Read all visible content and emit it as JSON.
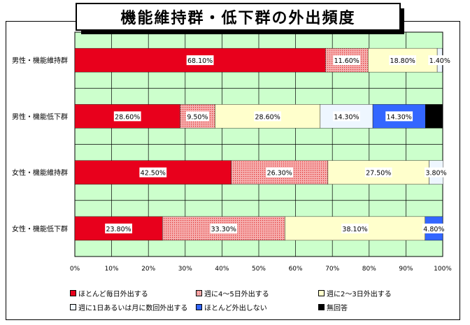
{
  "chart_data": {
    "type": "bar",
    "orientation": "horizontal",
    "stacked": true,
    "title": "機能維持群・低下群の外出頻度",
    "categories": [
      "男性・機能維持群",
      "男性・機能低下群",
      "女性・機能維持群",
      "女性・機能低下群"
    ],
    "x_ticks": [
      "0%",
      "10%",
      "20%",
      "30%",
      "40%",
      "50%",
      "60%",
      "70%",
      "80%",
      "90%",
      "100%"
    ],
    "xlim": [
      0,
      100
    ],
    "grid": true,
    "legend_position": "bottom",
    "series": [
      {
        "name": "ほとんど毎日外出する",
        "color": "#e8001c",
        "values": [
          68.1,
          28.6,
          42.5,
          23.8
        ],
        "labels": [
          "68.10%",
          "28.60%",
          "42.50%",
          "23.80%"
        ]
      },
      {
        "name": "週に4～5日外出する",
        "color": "#f08080",
        "values": [
          11.6,
          9.5,
          26.3,
          33.3
        ],
        "labels": [
          "11.60%",
          "9.50%",
          "26.30%",
          "33.30%"
        ]
      },
      {
        "name": "週に2～3日外出する",
        "color": "#ffffcc",
        "values": [
          18.8,
          28.6,
          27.5,
          38.1
        ],
        "labels": [
          "18.80%",
          "28.60%",
          "27.50%",
          "38.10%"
        ]
      },
      {
        "name": "週に1日あるいは月に数回外出する",
        "color": "#eef6ff",
        "values": [
          1.4,
          14.3,
          3.8,
          0
        ],
        "labels": [
          "1.40%",
          "14.30%",
          "3.80%",
          ""
        ]
      },
      {
        "name": "ほとんど外出しない",
        "color": "#3366ff",
        "values": [
          0,
          14.3,
          0,
          4.8
        ],
        "labels": [
          "",
          "14.30%",
          "",
          "4.80%"
        ]
      },
      {
        "name": "無回答",
        "color": "#000000",
        "values": [
          0,
          4.7,
          0,
          0
        ],
        "labels": [
          "",
          "",
          "",
          ""
        ]
      }
    ]
  }
}
